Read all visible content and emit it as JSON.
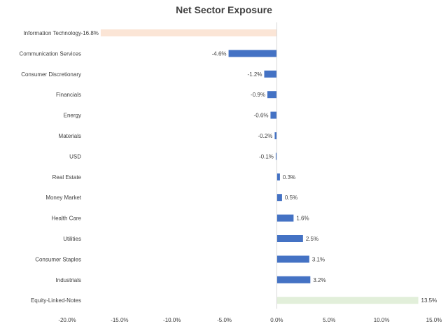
{
  "chart_data": {
    "type": "bar",
    "orientation": "horizontal",
    "title": "Net Sector Exposure",
    "categories": [
      "Information Technology",
      "Communication Services",
      "Consumer Discretionary",
      "Financials",
      "Energy",
      "Materials",
      "USD",
      "Real Estate",
      "Money Market",
      "Health Care",
      "Utilities",
      "Consumer Staples",
      "Industrials",
      "Equity-Linked-Notes"
    ],
    "values": [
      -16.8,
      -4.6,
      -1.2,
      -0.9,
      -0.6,
      -0.2,
      -0.1,
      0.3,
      0.5,
      1.6,
      2.5,
      3.1,
      3.2,
      13.5
    ],
    "data_labels": [
      "-16.8%",
      "-4.6%",
      "-1.2%",
      "-0.9%",
      "-0.6%",
      "-0.2%",
      "-0.1%",
      "0.3%",
      "0.5%",
      "1.6%",
      "2.5%",
      "3.1%",
      "3.2%",
      "13.5%"
    ],
    "bar_colors": [
      "#fbe5d6",
      "#4472c4",
      "#4472c4",
      "#4472c4",
      "#4472c4",
      "#4472c4",
      "#4472c4",
      "#4472c4",
      "#4472c4",
      "#4472c4",
      "#4472c4",
      "#4472c4",
      "#4472c4",
      "#e2efda"
    ],
    "xlim": [
      -20,
      15
    ],
    "xticks": [
      -20,
      -15,
      -10,
      -5,
      0,
      5,
      10,
      15
    ],
    "xtick_labels": [
      "-20.0%",
      "-15.0%",
      "-10.0%",
      "-5.0%",
      "0.0%",
      "5.0%",
      "10.0%",
      "15.0%"
    ],
    "xlabel": "",
    "ylabel": "",
    "grid": false,
    "legend": "none",
    "axis_color": "#d9d9d9",
    "text_color": "#404040"
  }
}
